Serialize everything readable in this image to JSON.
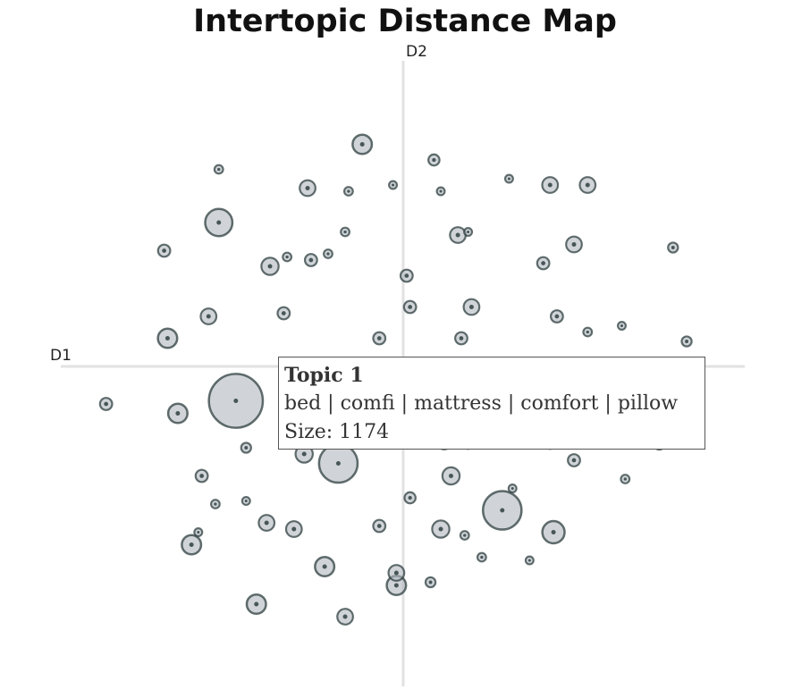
{
  "chart_data": {
    "type": "scatter",
    "title": "Intertopic Distance Map",
    "xlabel": "D1",
    "ylabel": "D2",
    "xlim": [
      -10,
      10
    ],
    "ylim": [
      -10,
      10
    ],
    "grid": false,
    "bubble_color": "#b0b8c0",
    "bubble_stroke": "#2f3f3f",
    "points": [
      {
        "x": -4.9,
        "y": -1.1,
        "size": 1174
      },
      {
        "x": -1.9,
        "y": -3.1,
        "size": 600
      },
      {
        "x": 2.9,
        "y": -4.6,
        "size": 600
      },
      {
        "x": -5.4,
        "y": 4.6,
        "size": 300
      },
      {
        "x": -2.0,
        "y": -2.1,
        "size": 300
      },
      {
        "x": 4.4,
        "y": -5.3,
        "size": 200
      },
      {
        "x": -1.2,
        "y": 7.1,
        "size": 150
      },
      {
        "x": -6.9,
        "y": 0.9,
        "size": 150
      },
      {
        "x": -6.6,
        "y": -1.5,
        "size": 150
      },
      {
        "x": -6.2,
        "y": -5.7,
        "size": 150
      },
      {
        "x": -2.3,
        "y": -6.4,
        "size": 150
      },
      {
        "x": -4.3,
        "y": -7.6,
        "size": 150
      },
      {
        "x": -0.2,
        "y": -7.0,
        "size": 150
      },
      {
        "x": 4.5,
        "y": -0.9,
        "size": 150
      },
      {
        "x": -3.9,
        "y": 3.2,
        "size": 120
      },
      {
        "x": -2.9,
        "y": -2.8,
        "size": 120
      },
      {
        "x": 1.4,
        "y": -3.5,
        "size": 120
      },
      {
        "x": 1.1,
        "y": -5.2,
        "size": 120
      },
      {
        "x": -2.8,
        "y": 5.7,
        "size": 100
      },
      {
        "x": 5.4,
        "y": 5.8,
        "size": 100
      },
      {
        "x": 5.0,
        "y": 3.9,
        "size": 100
      },
      {
        "x": 1.6,
        "y": 4.2,
        "size": 100
      },
      {
        "x": 2.0,
        "y": 1.9,
        "size": 100
      },
      {
        "x": -5.7,
        "y": 1.6,
        "size": 100
      },
      {
        "x": 4.3,
        "y": 5.8,
        "size": 100
      },
      {
        "x": -4.0,
        "y": -5.0,
        "size": 100
      },
      {
        "x": -3.2,
        "y": -5.2,
        "size": 100
      },
      {
        "x": 1.2,
        "y": -2.4,
        "size": 100
      },
      {
        "x": -0.2,
        "y": -6.6,
        "size": 100
      },
      {
        "x": -1.7,
        "y": -8.0,
        "size": 100
      },
      {
        "x": 0.1,
        "y": 2.9,
        "size": 60
      },
      {
        "x": 4.5,
        "y": 1.6,
        "size": 60
      },
      {
        "x": 5.0,
        "y": -3.0,
        "size": 60
      },
      {
        "x": -7.0,
        "y": 3.7,
        "size": 60
      },
      {
        "x": -3.5,
        "y": 1.7,
        "size": 60
      },
      {
        "x": 0.2,
        "y": 1.9,
        "size": 60
      },
      {
        "x": 0.3,
        "y": -2.0,
        "size": 60
      },
      {
        "x": 1.7,
        "y": 0.9,
        "size": 60
      },
      {
        "x": -0.7,
        "y": 0.9,
        "size": 60
      },
      {
        "x": -8.7,
        "y": -1.2,
        "size": 60
      },
      {
        "x": -5.9,
        "y": -3.5,
        "size": 60
      },
      {
        "x": -0.7,
        "y": -5.1,
        "size": 60
      },
      {
        "x": -2.7,
        "y": 3.4,
        "size": 60
      },
      {
        "x": 4.1,
        "y": 3.3,
        "size": 60
      },
      {
        "x": 0.9,
        "y": 6.6,
        "size": 50
      },
      {
        "x": 0.2,
        "y": -4.2,
        "size": 50
      },
      {
        "x": 7.9,
        "y": 3.8,
        "size": 40
      },
      {
        "x": 8.3,
        "y": 0.8,
        "size": 40
      },
      {
        "x": 7.5,
        "y": -2.5,
        "size": 40
      },
      {
        "x": 6.5,
        "y": -3.6,
        "size": 30
      },
      {
        "x": -5.5,
        "y": -4.4,
        "size": 30
      },
      {
        "x": -4.6,
        "y": -2.6,
        "size": 40
      },
      {
        "x": 0.8,
        "y": -6.9,
        "size": 40
      },
      {
        "x": 2.3,
        "y": -6.1,
        "size": 30
      },
      {
        "x": -5.4,
        "y": 6.3,
        "size": 30
      },
      {
        "x": 0.1,
        "y": -0.2,
        "size": 40
      },
      {
        "x": 0.0,
        "y": -2.3,
        "size": 30
      },
      {
        "x": 5.4,
        "y": 1.1,
        "size": 30
      },
      {
        "x": 6.4,
        "y": 1.3,
        "size": 25
      },
      {
        "x": -0.3,
        "y": 5.8,
        "size": 25
      },
      {
        "x": 3.1,
        "y": 6.0,
        "size": 25
      },
      {
        "x": 1.1,
        "y": 5.6,
        "size": 25
      },
      {
        "x": 1.9,
        "y": 4.3,
        "size": 25
      },
      {
        "x": 3.2,
        "y": -3.9,
        "size": 25
      },
      {
        "x": 3.7,
        "y": -6.2,
        "size": 25
      },
      {
        "x": -1.6,
        "y": 5.6,
        "size": 30
      },
      {
        "x": -2.2,
        "y": 3.6,
        "size": 30
      },
      {
        "x": -1.7,
        "y": 4.3,
        "size": 30
      },
      {
        "x": -3.4,
        "y": 3.5,
        "size": 30
      },
      {
        "x": 1.8,
        "y": -5.4,
        "size": 30
      },
      {
        "x": 1.9,
        "y": -2.5,
        "size": 30
      },
      {
        "x": 4.3,
        "y": -2.5,
        "size": 30
      },
      {
        "x": -4.6,
        "y": -4.3,
        "size": 25
      },
      {
        "x": -6.0,
        "y": -5.3,
        "size": 25
      }
    ]
  },
  "tooltip": {
    "title": "Topic 1",
    "words": "bed | comfi | mattress | comfort | pillow",
    "size_text": "Size: 1174"
  }
}
